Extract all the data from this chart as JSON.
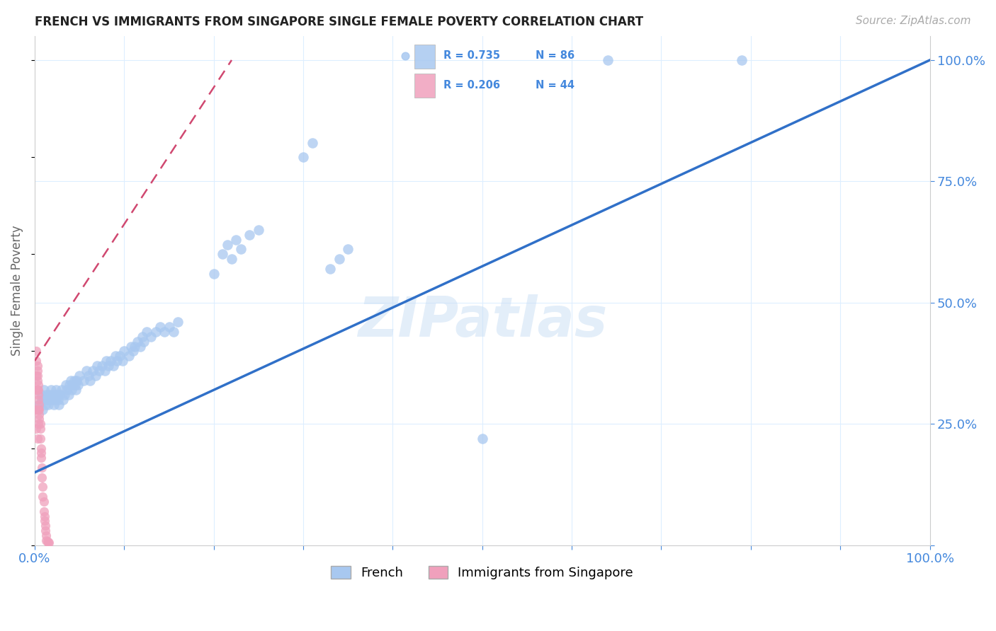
{
  "title": "FRENCH VS IMMIGRANTS FROM SINGAPORE SINGLE FEMALE POVERTY CORRELATION CHART",
  "source": "Source: ZipAtlas.com",
  "ylabel": "Single Female Poverty",
  "watermark": "ZIPatlas",
  "french_color": "#a8c8f0",
  "singapore_color": "#f0a0bc",
  "french_line_color": "#3070c8",
  "singapore_line_color": "#d04870",
  "french_scatter": [
    [
      0.005,
      0.29
    ],
    [
      0.007,
      0.31
    ],
    [
      0.008,
      0.3
    ],
    [
      0.009,
      0.28
    ],
    [
      0.01,
      0.32
    ],
    [
      0.011,
      0.3
    ],
    [
      0.012,
      0.29
    ],
    [
      0.013,
      0.31
    ],
    [
      0.014,
      0.3
    ],
    [
      0.015,
      0.29
    ],
    [
      0.016,
      0.31
    ],
    [
      0.017,
      0.3
    ],
    [
      0.018,
      0.32
    ],
    [
      0.019,
      0.31
    ],
    [
      0.02,
      0.3
    ],
    [
      0.021,
      0.29
    ],
    [
      0.022,
      0.31
    ],
    [
      0.023,
      0.3
    ],
    [
      0.024,
      0.32
    ],
    [
      0.025,
      0.31
    ],
    [
      0.026,
      0.3
    ],
    [
      0.027,
      0.29
    ],
    [
      0.028,
      0.31
    ],
    [
      0.03,
      0.32
    ],
    [
      0.032,
      0.3
    ],
    [
      0.033,
      0.31
    ],
    [
      0.035,
      0.33
    ],
    [
      0.036,
      0.32
    ],
    [
      0.038,
      0.31
    ],
    [
      0.039,
      0.33
    ],
    [
      0.04,
      0.34
    ],
    [
      0.041,
      0.32
    ],
    [
      0.042,
      0.33
    ],
    [
      0.044,
      0.34
    ],
    [
      0.045,
      0.33
    ],
    [
      0.046,
      0.32
    ],
    [
      0.047,
      0.34
    ],
    [
      0.048,
      0.33
    ],
    [
      0.05,
      0.35
    ],
    [
      0.055,
      0.34
    ],
    [
      0.058,
      0.36
    ],
    [
      0.06,
      0.35
    ],
    [
      0.062,
      0.34
    ],
    [
      0.065,
      0.36
    ],
    [
      0.068,
      0.35
    ],
    [
      0.07,
      0.37
    ],
    [
      0.072,
      0.36
    ],
    [
      0.075,
      0.37
    ],
    [
      0.078,
      0.36
    ],
    [
      0.08,
      0.38
    ],
    [
      0.082,
      0.37
    ],
    [
      0.085,
      0.38
    ],
    [
      0.088,
      0.37
    ],
    [
      0.09,
      0.39
    ],
    [
      0.092,
      0.38
    ],
    [
      0.095,
      0.39
    ],
    [
      0.098,
      0.38
    ],
    [
      0.1,
      0.4
    ],
    [
      0.105,
      0.39
    ],
    [
      0.108,
      0.41
    ],
    [
      0.11,
      0.4
    ],
    [
      0.112,
      0.41
    ],
    [
      0.115,
      0.42
    ],
    [
      0.118,
      0.41
    ],
    [
      0.12,
      0.43
    ],
    [
      0.122,
      0.42
    ],
    [
      0.125,
      0.44
    ],
    [
      0.13,
      0.43
    ],
    [
      0.135,
      0.44
    ],
    [
      0.14,
      0.45
    ],
    [
      0.145,
      0.44
    ],
    [
      0.15,
      0.45
    ],
    [
      0.155,
      0.44
    ],
    [
      0.16,
      0.46
    ],
    [
      0.2,
      0.56
    ],
    [
      0.21,
      0.6
    ],
    [
      0.215,
      0.62
    ],
    [
      0.22,
      0.59
    ],
    [
      0.225,
      0.63
    ],
    [
      0.23,
      0.61
    ],
    [
      0.24,
      0.64
    ],
    [
      0.25,
      0.65
    ],
    [
      0.3,
      0.8
    ],
    [
      0.31,
      0.83
    ],
    [
      0.33,
      0.57
    ],
    [
      0.34,
      0.59
    ],
    [
      0.35,
      0.61
    ],
    [
      0.5,
      0.22
    ],
    [
      0.64,
      1.0
    ],
    [
      0.79,
      1.0
    ]
  ],
  "singapore_scatter": [
    [
      0.002,
      0.4
    ],
    [
      0.003,
      0.37
    ],
    [
      0.003,
      0.34
    ],
    [
      0.004,
      0.32
    ],
    [
      0.004,
      0.3
    ],
    [
      0.005,
      0.28
    ],
    [
      0.005,
      0.26
    ],
    [
      0.006,
      0.24
    ],
    [
      0.006,
      0.22
    ],
    [
      0.007,
      0.2
    ],
    [
      0.007,
      0.18
    ],
    [
      0.008,
      0.16
    ],
    [
      0.008,
      0.14
    ],
    [
      0.009,
      0.12
    ],
    [
      0.009,
      0.1
    ],
    [
      0.01,
      0.09
    ],
    [
      0.01,
      0.07
    ],
    [
      0.011,
      0.06
    ],
    [
      0.011,
      0.05
    ],
    [
      0.012,
      0.04
    ],
    [
      0.012,
      0.03
    ],
    [
      0.013,
      0.02
    ],
    [
      0.013,
      0.01
    ],
    [
      0.014,
      0.008
    ],
    [
      0.015,
      0.006
    ],
    [
      0.016,
      0.005
    ],
    [
      0.003,
      0.36
    ],
    [
      0.004,
      0.33
    ],
    [
      0.005,
      0.29
    ],
    [
      0.006,
      0.25
    ],
    [
      0.007,
      0.19
    ],
    [
      0.003,
      0.35
    ],
    [
      0.004,
      0.31
    ],
    [
      0.005,
      0.27
    ],
    [
      0.002,
      0.38
    ],
    [
      0.002,
      0.35
    ],
    [
      0.003,
      0.32
    ],
    [
      0.004,
      0.28
    ],
    [
      0.003,
      0.28
    ],
    [
      0.004,
      0.25
    ],
    [
      0.003,
      0.22
    ],
    [
      0.002,
      0.32
    ],
    [
      0.002,
      0.28
    ],
    [
      0.002,
      0.24
    ]
  ],
  "french_line": [
    [
      0.0,
      0.15
    ],
    [
      1.0,
      1.0
    ]
  ],
  "singapore_line": [
    [
      0.0,
      0.38
    ],
    [
      0.22,
      1.0
    ]
  ],
  "xlim": [
    0.0,
    1.0
  ],
  "ylim": [
    0.0,
    1.05
  ],
  "xticks": [
    0.0,
    0.1,
    0.2,
    0.3,
    0.4,
    0.5,
    0.6,
    0.7,
    0.8,
    0.9,
    1.0
  ],
  "yticks": [
    0.0,
    0.25,
    0.5,
    0.75,
    1.0
  ],
  "xticklabels": [
    "0.0%",
    "",
    "",
    "",
    "",
    "",
    "",
    "",
    "",
    "",
    "100.0%"
  ],
  "yticklabels_right": [
    "",
    "25.0%",
    "50.0%",
    "75.0%",
    "100.0%"
  ],
  "axis_label_color": "#4488dd",
  "grid_color": "#ddeeff",
  "background_color": "#ffffff"
}
